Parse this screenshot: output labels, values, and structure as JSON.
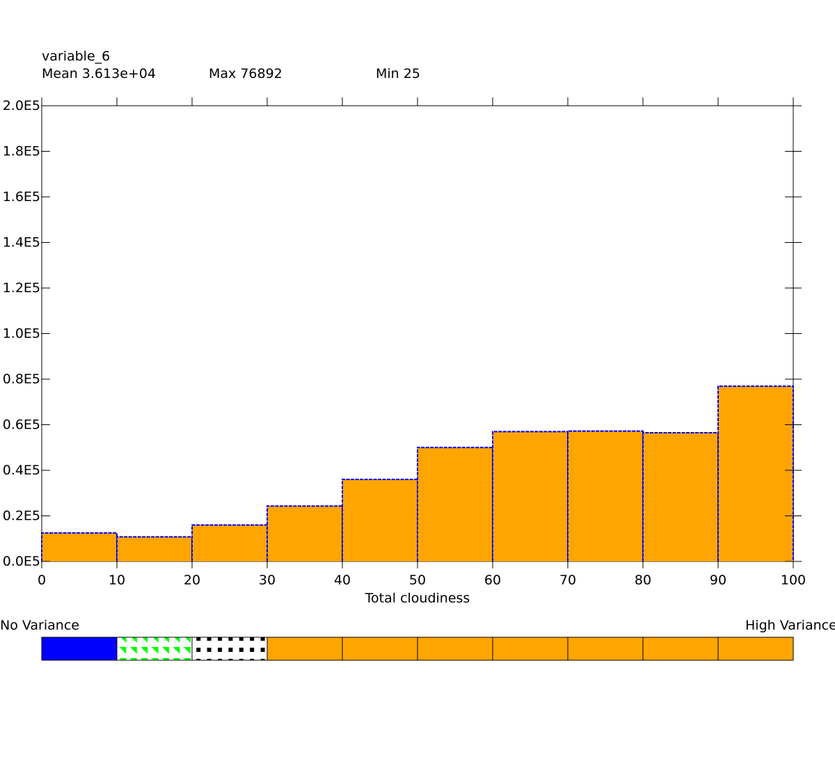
{
  "header": {
    "variable": "variable_6",
    "mean": "Mean 3.613e+04",
    "max": "Max 76892",
    "min": "Min 25"
  },
  "colors": {
    "bar_fill": "#FFA500",
    "bar_outline": "#0000FF",
    "legend_blue": "#0000FF",
    "legend_green": "#00FF00",
    "legend_orange": "#FFA500"
  },
  "chart_data": {
    "type": "bar",
    "xlabel": "Total cloudiness",
    "ylabel": "",
    "x_bins": [
      [
        0,
        10
      ],
      [
        10,
        20
      ],
      [
        20,
        30
      ],
      [
        30,
        40
      ],
      [
        40,
        50
      ],
      [
        50,
        60
      ],
      [
        60,
        70
      ],
      [
        70,
        80
      ],
      [
        80,
        90
      ],
      [
        90,
        100
      ]
    ],
    "values": [
      12500,
      10800,
      16000,
      24300,
      36000,
      50000,
      57000,
      57200,
      56500,
      76892
    ],
    "xlim": [
      0,
      100
    ],
    "ylim": [
      0,
      200000
    ],
    "x_ticks": [
      "0",
      "10",
      "20",
      "30",
      "40",
      "50",
      "60",
      "70",
      "80",
      "90",
      "100"
    ],
    "y_ticks": [
      "0.0E5",
      "0.2E5",
      "0.4E5",
      "0.6E5",
      "0.8E5",
      "1.0E5",
      "1.2E5",
      "1.4E5",
      "1.6E5",
      "1.8E5",
      "2.0E5"
    ],
    "grid": false
  },
  "variance_legend": {
    "low_label": "No Variance",
    "high_label": "High Variance",
    "cells": [
      "solid-blue",
      "green-triangles",
      "black-squares",
      "orange",
      "orange",
      "orange",
      "orange",
      "orange",
      "orange",
      "orange"
    ]
  }
}
